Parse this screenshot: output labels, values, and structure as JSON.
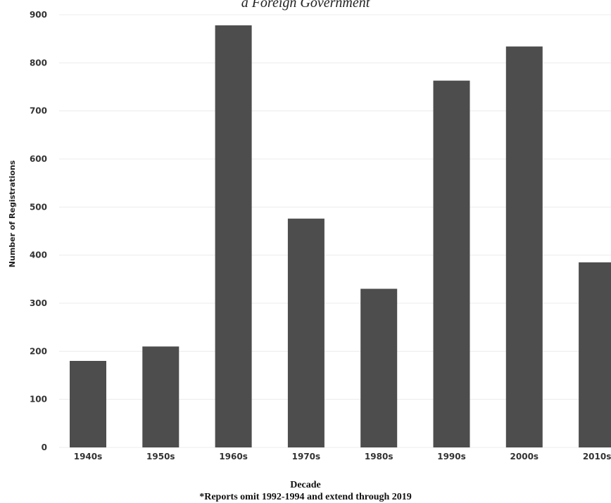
{
  "chart_data": {
    "type": "bar",
    "title": "a Foreign Government",
    "xlabel": "Decade",
    "footnote": "*Reports omit 1992-1994 and extend through 2019",
    "ylabel": "Number of Registrations",
    "categories": [
      "1940s",
      "1950s",
      "1960s",
      "1970s",
      "1980s",
      "1990s",
      "2000s",
      "2010s"
    ],
    "values": [
      180,
      210,
      878,
      476,
      330,
      763,
      834,
      385
    ],
    "ylim": [
      0,
      900
    ],
    "yticks": [
      0,
      100,
      200,
      300,
      400,
      500,
      600,
      700,
      800,
      900
    ],
    "grid": true,
    "bar_color": "#4d4d4d"
  }
}
